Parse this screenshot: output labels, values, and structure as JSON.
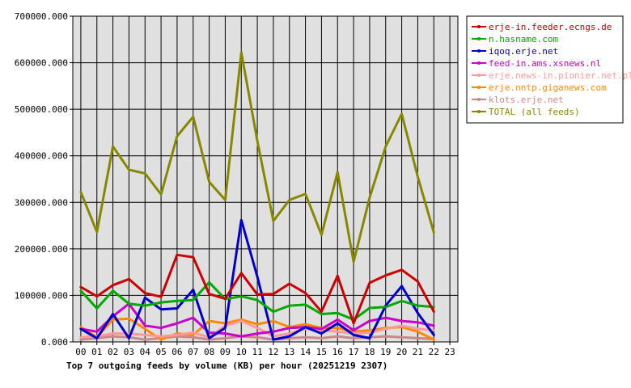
{
  "chart_data": {
    "type": "line",
    "title": "Top 7 outgoing feeds by volume (KB) per hour (20251219 2307)",
    "xlabel": "",
    "ylabel": "",
    "ylim": [
      0,
      700000
    ],
    "y_ticks": [
      "0.000",
      "100000.000",
      "200000.000",
      "300000.000",
      "400000.000",
      "500000.000",
      "600000.000",
      "700000.000"
    ],
    "x_ticks": [
      "00",
      "01",
      "02",
      "03",
      "04",
      "05",
      "06",
      "07",
      "08",
      "09",
      "10",
      "11",
      "12",
      "13",
      "14",
      "15",
      "16",
      "17",
      "18",
      "19",
      "20",
      "21",
      "22",
      "23"
    ],
    "grid": true,
    "legend_position": "right",
    "series": [
      {
        "name": "erje-in.feeder.ecngs.de",
        "color": "#cc0000",
        "values": [
          118000,
          98000,
          122000,
          135000,
          105000,
          97000,
          187000,
          182000,
          103000,
          93000,
          148000,
          102000,
          103000,
          125000,
          105000,
          65000,
          142000,
          40000,
          127000,
          143000,
          155000,
          130000,
          65000
        ]
      },
      {
        "name": "n.hasname.com",
        "color": "#00aa00",
        "values": [
          110000,
          72000,
          110000,
          82000,
          78000,
          85000,
          88000,
          90000,
          128000,
          92000,
          98000,
          90000,
          65000,
          78000,
          80000,
          60000,
          62000,
          48000,
          73000,
          75000,
          88000,
          78000,
          75000
        ]
      },
      {
        "name": "iqoq.erje.net",
        "color": "#0000cc",
        "values": [
          28000,
          8000,
          60000,
          8000,
          95000,
          70000,
          72000,
          112000,
          8000,
          30000,
          262000,
          140000,
          5000,
          12000,
          32000,
          18000,
          40000,
          15000,
          8000,
          78000,
          120000,
          62000,
          15000
        ]
      },
      {
        "name": "feed-in.ams.xsnews.nl",
        "color": "#cc00cc",
        "values": [
          28000,
          22000,
          55000,
          82000,
          35000,
          30000,
          40000,
          52000,
          20000,
          18000,
          12000,
          18000,
          22000,
          30000,
          32000,
          28000,
          48000,
          25000,
          45000,
          52000,
          45000,
          42000,
          35000
        ]
      },
      {
        "name": "erje.news-in.pionier.net.pl",
        "color": "#ff9999",
        "values": [
          10000,
          12000,
          18000,
          18000,
          15000,
          12000,
          15000,
          20000,
          10000,
          35000,
          45000,
          30000,
          12000,
          18000,
          28000,
          25000,
          22000,
          18000,
          20000,
          28000,
          35000,
          28000,
          25000
        ]
      },
      {
        "name": "erje.nntp.giganews.com",
        "color": "#ff8800",
        "values": [
          32000,
          10000,
          48000,
          50000,
          28000,
          5000,
          18000,
          15000,
          45000,
          40000,
          48000,
          38000,
          45000,
          32000,
          38000,
          30000,
          30000,
          22000,
          25000,
          30000,
          32000,
          22000,
          5000
        ]
      },
      {
        "name": "klots.erje.net",
        "color": "#cc8888",
        "values": [
          5000,
          8000,
          12000,
          10000,
          5000,
          8000,
          12000,
          10000,
          5000,
          8000,
          12000,
          10000,
          5000,
          8000,
          10000,
          8000,
          12000,
          8000,
          10000,
          12000,
          10000,
          8000,
          6000
        ]
      },
      {
        "name": "TOTAL (all feeds)",
        "color": "#888800",
        "values": [
          322000,
          236000,
          420000,
          370000,
          362000,
          317000,
          442000,
          484000,
          344000,
          305000,
          622000,
          432000,
          260000,
          305000,
          318000,
          230000,
          365000,
          172000,
          310000,
          420000,
          490000,
          355000,
          235000
        ]
      }
    ]
  }
}
